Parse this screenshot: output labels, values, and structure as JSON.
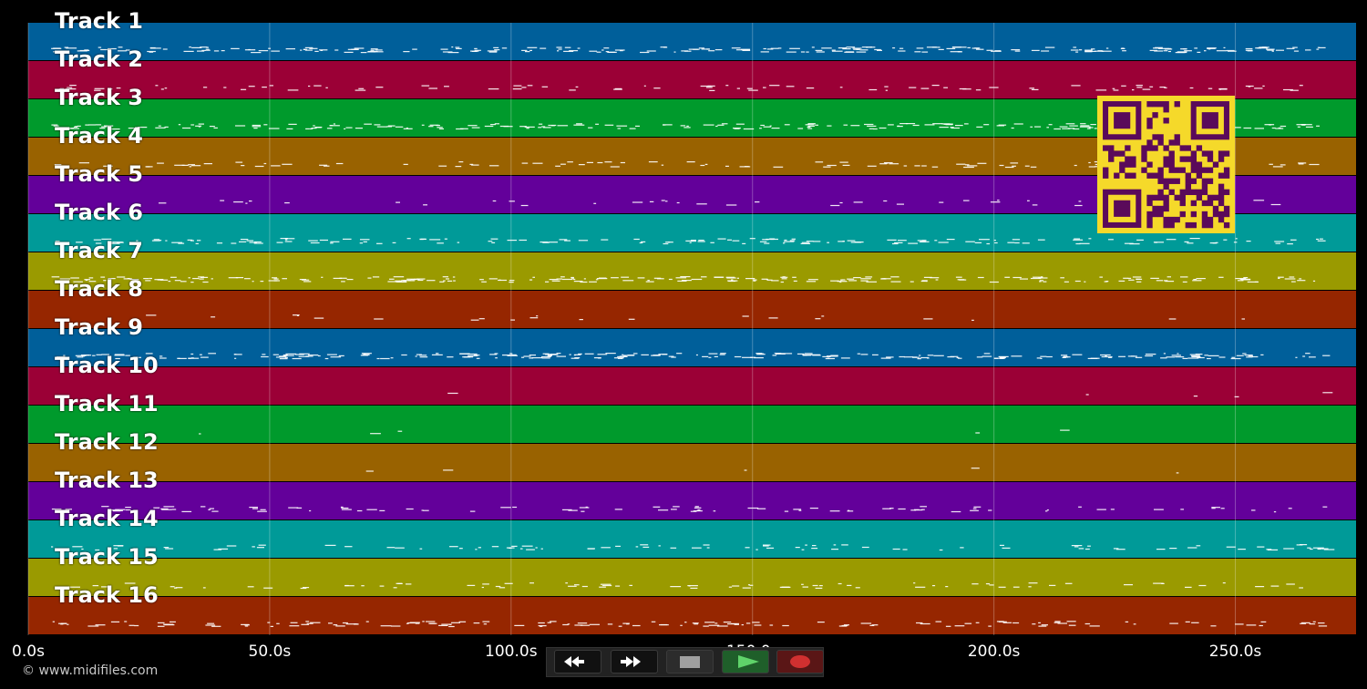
{
  "tracks": [
    {
      "label": "Track 1",
      "color": "#005f9a"
    },
    {
      "label": "Track 2",
      "color": "#9b0036"
    },
    {
      "label": "Track 3",
      "color": "#009a2c"
    },
    {
      "label": "Track 4",
      "color": "#996200"
    },
    {
      "label": "Track 5",
      "color": "#63009a"
    },
    {
      "label": "Track 6",
      "color": "#009a98"
    },
    {
      "label": "Track 7",
      "color": "#9a9a00"
    },
    {
      "label": "Track 8",
      "color": "#962600"
    },
    {
      "label": "Track 9",
      "color": "#005f9a"
    },
    {
      "label": "Track 10",
      "color": "#9b0036"
    },
    {
      "label": "Track 11",
      "color": "#009a2c"
    },
    {
      "label": "Track 12",
      "color": "#996200"
    },
    {
      "label": "Track 13",
      "color": "#63009a"
    },
    {
      "label": "Track 14",
      "color": "#009a98"
    },
    {
      "label": "Track 15",
      "color": "#9a9a00"
    },
    {
      "label": "Track 16",
      "color": "#962600"
    }
  ],
  "timeline": {
    "max_seconds": 275,
    "ticks": [
      {
        "value": 0,
        "label": "0.0s"
      },
      {
        "value": 50,
        "label": "50.0s"
      },
      {
        "value": 100,
        "label": "100.0s"
      },
      {
        "value": 150,
        "label": "150.0s"
      },
      {
        "value": 200,
        "label": "200.0s"
      },
      {
        "value": 250,
        "label": "250.0s"
      }
    ]
  },
  "transport": {
    "rewind_icon": "rewind-icon",
    "fast_forward_icon": "fast-forward-icon",
    "stop_icon": "stop-icon",
    "play_icon": "play-icon",
    "record_icon": "record-icon",
    "play_color": "#5fd36a",
    "record_color": "#d03030"
  },
  "copyright": "© www.midifiles.com",
  "qr": {
    "fg": "#5a0a5a",
    "bg": "#f5d92a"
  }
}
